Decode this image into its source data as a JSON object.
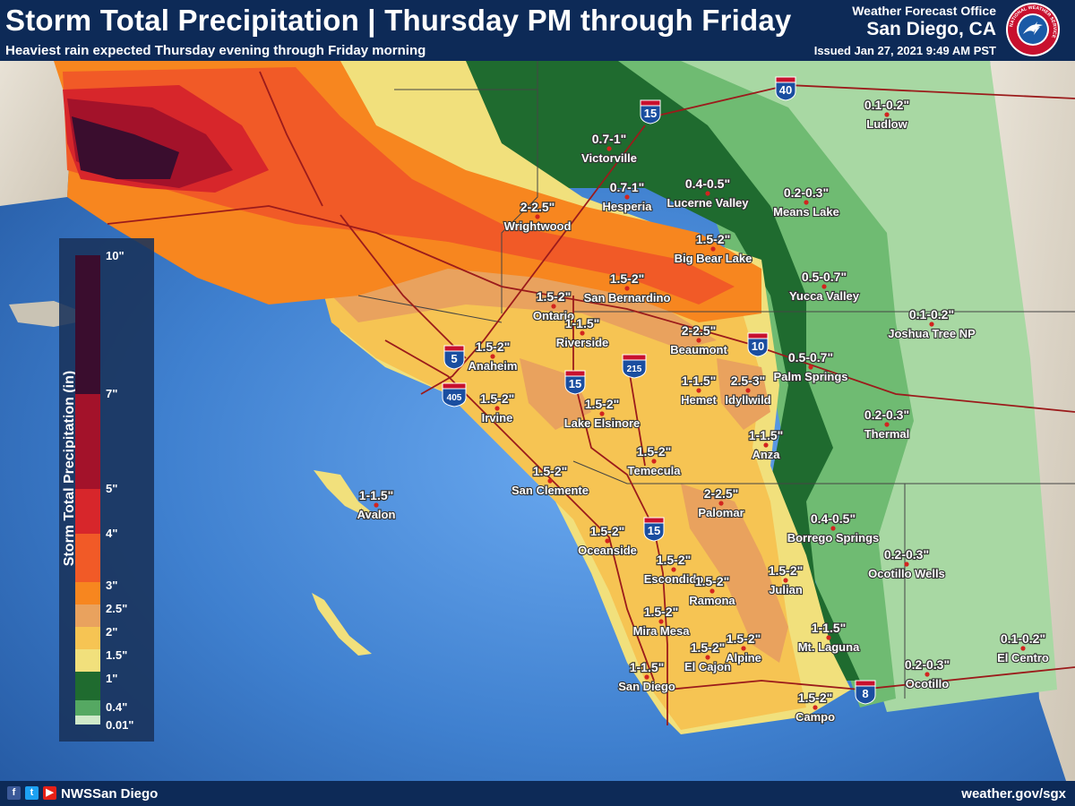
{
  "header": {
    "title": "Storm Total Precipitation | Thursday PM through Friday",
    "subtitle": "Heaviest rain expected Thursday evening through Friday morning",
    "office_label": "Weather Forecast Office",
    "office_city": "San Diego, CA",
    "issued": "Issued Jan 27, 2021 9:49 AM PST",
    "logo_text": "NATIONAL WEATHER SERVICE"
  },
  "legend": {
    "title": "Storm Total Precipitation (in)",
    "stops": [
      {
        "label": "10\"",
        "color": "#3a0d2e"
      },
      {
        "label": "7\"",
        "color": "#a3122a"
      },
      {
        "label": "5\"",
        "color": "#d7262b"
      },
      {
        "label": "4\"",
        "color": "#f15a27"
      },
      {
        "label": "3\"",
        "color": "#f7861f"
      },
      {
        "label": "2.5\"",
        "color": "#e9a25e"
      },
      {
        "label": "2\"",
        "color": "#f6c453"
      },
      {
        "label": "1.5\"",
        "color": "#f1e07c"
      },
      {
        "label": "1\"",
        "color": "#1f6b2f"
      },
      {
        "label": "0.4\"",
        "color": "#55a862"
      },
      {
        "label": "0.01\"",
        "color": "#cfe9c9"
      }
    ]
  },
  "places": [
    {
      "name": "Victorville",
      "amount": "0.7-1\""
    },
    {
      "name": "Hesperia",
      "amount": "0.7-1\""
    },
    {
      "name": "Lucerne Valley",
      "amount": "0.4-0.5\""
    },
    {
      "name": "Means Lake",
      "amount": "0.2-0.3\""
    },
    {
      "name": "Ludlow",
      "amount": "0.1-0.2\""
    },
    {
      "name": "Wrightwood",
      "amount": "2-2.5\""
    },
    {
      "name": "Big Bear Lake",
      "amount": "1.5-2\""
    },
    {
      "name": "San Bernardino",
      "amount": "1.5-2\""
    },
    {
      "name": "Ontario",
      "amount": "1.5-2\""
    },
    {
      "name": "Riverside",
      "amount": "1-1.5\""
    },
    {
      "name": "Yucca Valley",
      "amount": "0.5-0.7\""
    },
    {
      "name": "Joshua Tree NP",
      "amount": "0.1-0.2\""
    },
    {
      "name": "Anaheim",
      "amount": "1.5-2\""
    },
    {
      "name": "Beaumont",
      "amount": "2-2.5\""
    },
    {
      "name": "Palm Springs",
      "amount": "0.5-0.7\""
    },
    {
      "name": "Irvine",
      "amount": "1.5-2\""
    },
    {
      "name": "Hemet",
      "amount": "1-1.5\""
    },
    {
      "name": "Idyllwild",
      "amount": "2.5-3\""
    },
    {
      "name": "Lake Elsinore",
      "amount": "1.5-2\""
    },
    {
      "name": "Thermal",
      "amount": "0.2-0.3\""
    },
    {
      "name": "Anza",
      "amount": "1-1.5\""
    },
    {
      "name": "Temecula",
      "amount": "1.5-2\""
    },
    {
      "name": "San Clemente",
      "amount": "1.5-2\""
    },
    {
      "name": "Avalon",
      "amount": "1-1.5\""
    },
    {
      "name": "Palomar",
      "amount": "2-2.5\""
    },
    {
      "name": "Borrego Springs",
      "amount": "0.4-0.5\""
    },
    {
      "name": "Oceanside",
      "amount": "1.5-2\""
    },
    {
      "name": "Ocotillo Wells",
      "amount": "0.2-0.3\""
    },
    {
      "name": "Escondido",
      "amount": "1.5-2\""
    },
    {
      "name": "Ramona",
      "amount": "1.5-2\""
    },
    {
      "name": "Julian",
      "amount": "1.5-2\""
    },
    {
      "name": "Mira Mesa",
      "amount": "1.5-2\""
    },
    {
      "name": "Alpine",
      "amount": "1.5-2\""
    },
    {
      "name": "Mt. Laguna",
      "amount": "1-1.5\""
    },
    {
      "name": "El Cajon",
      "amount": "1.5-2\""
    },
    {
      "name": "El Centro",
      "amount": "0.1-0.2\""
    },
    {
      "name": "San Diego",
      "amount": "1-1.5\""
    },
    {
      "name": "Ocotillo",
      "amount": "0.2-0.3\""
    },
    {
      "name": "Campo",
      "amount": "1.5-2\""
    }
  ],
  "highways": [
    {
      "number": "15"
    },
    {
      "number": "40"
    },
    {
      "number": "5"
    },
    {
      "number": "405"
    },
    {
      "number": "15"
    },
    {
      "number": "215"
    },
    {
      "number": "10"
    },
    {
      "number": "15"
    },
    {
      "number": "8"
    }
  ],
  "footer": {
    "handle": "NWSSan Diego",
    "url": "weather.gov/sgx"
  }
}
